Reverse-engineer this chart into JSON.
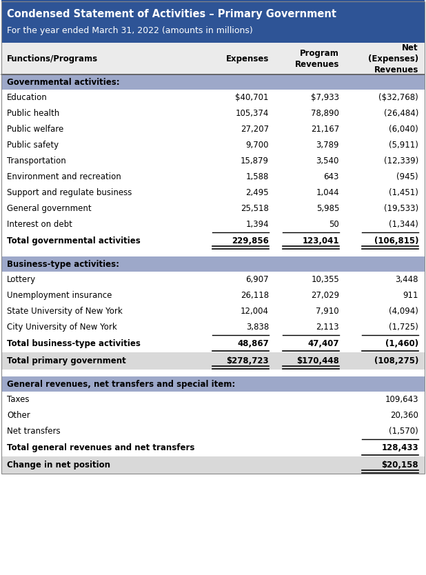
{
  "title_line1": "Condensed Statement of Activities – Primary Government",
  "title_line2": "For the year ended March 31, 2022 (amounts in millions)",
  "header_bg": "#2E5496",
  "header_text_color": "#FFFFFF",
  "section_bg": "#9DA8C9",
  "total_bg": "#D9D9D9",
  "white_bg": "#FFFFFF",
  "light_bg": "#F2F2F2",
  "col_headers": [
    "Functions/Programs",
    "Expenses",
    "Program\nRevenues",
    "Net\n(Expenses)\nRevenues"
  ],
  "gov_section_label": "Governmental activities:",
  "gov_rows": [
    [
      "Education",
      "$40,701",
      "$7,933",
      "($32,768)"
    ],
    [
      "Public health",
      "105,374",
      "78,890",
      "(26,484)"
    ],
    [
      "Public welfare",
      "27,207",
      "21,167",
      "(6,040)"
    ],
    [
      "Public safety",
      "9,700",
      "3,789",
      "(5,911)"
    ],
    [
      "Transportation",
      "15,879",
      "3,540",
      "(12,339)"
    ],
    [
      "Environment and recreation",
      "1,588",
      "643",
      "(945)"
    ],
    [
      "Support and regulate business",
      "2,495",
      "1,044",
      "(1,451)"
    ],
    [
      "General government",
      "25,518",
      "5,985",
      "(19,533)"
    ],
    [
      "Interest on debt",
      "1,394",
      "50",
      "(1,344)"
    ]
  ],
  "gov_total_row": [
    "Total governmental activities",
    "229,856",
    "123,041",
    "(106,815)"
  ],
  "biz_section_label": "Business-type activities:",
  "biz_rows": [
    [
      "Lottery",
      "6,907",
      "10,355",
      "3,448"
    ],
    [
      "Unemployment insurance",
      "26,118",
      "27,029",
      "911"
    ],
    [
      "State University of New York",
      "12,004",
      "7,910",
      "(4,094)"
    ],
    [
      "City University of New York",
      "3,838",
      "2,113",
      "(1,725)"
    ]
  ],
  "biz_total_row": [
    "Total business-type activities",
    "48,867",
    "47,407",
    "(1,460)"
  ],
  "primary_gov_row": [
    "Total primary government",
    "$278,723",
    "$170,448",
    "(108,275)"
  ],
  "gen_rev_section_label": "General revenues, net transfers and special item:",
  "gen_rev_rows": [
    [
      "Taxes",
      "",
      "",
      "109,643"
    ],
    [
      "Other",
      "",
      "",
      "20,360"
    ],
    [
      "Net transfers",
      "",
      "",
      "(1,570)"
    ]
  ],
  "gen_rev_total_row": [
    "Total general revenues and net transfers",
    "",
    "",
    "128,433"
  ],
  "change_row": [
    "Change in net position",
    "",
    "",
    "$20,158"
  ],
  "font_size": 8.5,
  "title_font_size": 10.5,
  "fig_width": 6.18,
  "fig_height": 8.34,
  "dpi": 100
}
